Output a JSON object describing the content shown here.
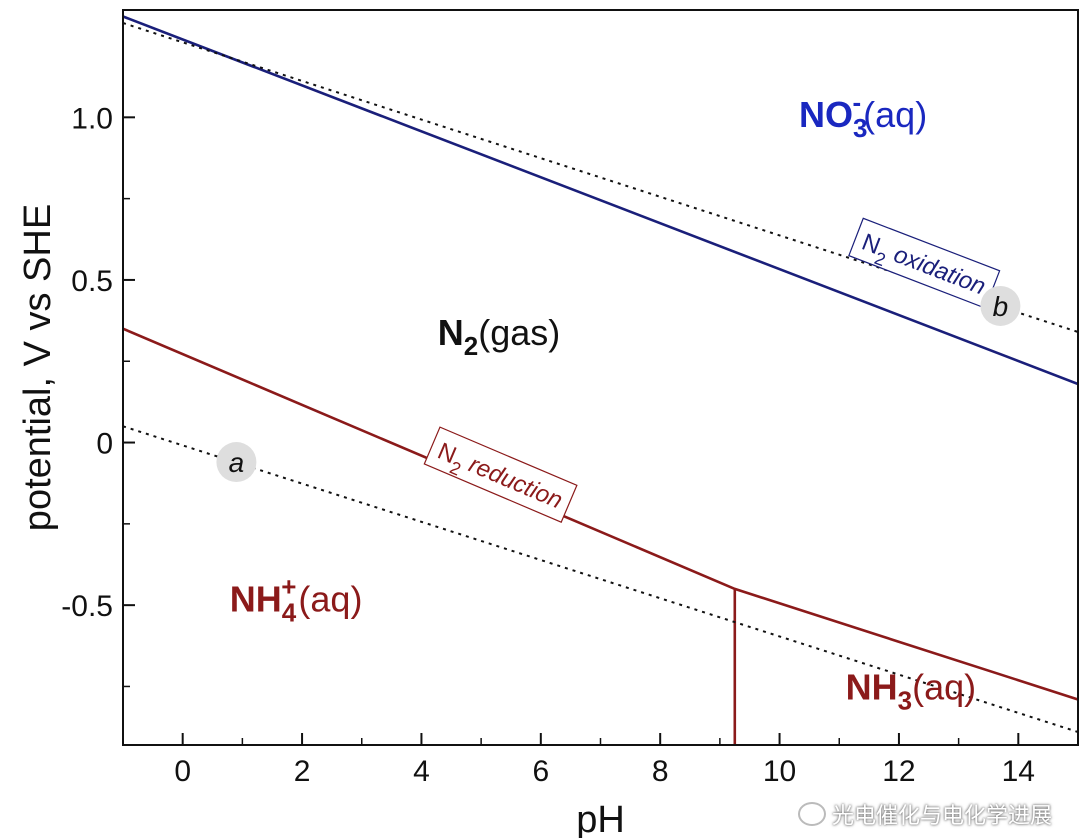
{
  "chart_data": {
    "type": "line",
    "xlabel": "pH",
    "ylabel": "potential, V vs SHE",
    "xlim": [
      -1,
      15
    ],
    "ylim": [
      -0.93,
      1.33
    ],
    "x_ticks": [
      0,
      2,
      4,
      6,
      8,
      10,
      12,
      14
    ],
    "x_tick_labels": [
      "0",
      "2",
      "4",
      "6",
      "8",
      "10",
      "12",
      "14"
    ],
    "y_ticks": [
      1.0,
      0.5,
      0,
      -0.5
    ],
    "y_tick_labels": [
      "1.0",
      "0.5",
      "0",
      "-0.5"
    ],
    "grid": false,
    "series": [
      {
        "key": "n2-oxidation",
        "color": "#1a1f7a",
        "style": "solid",
        "x": [
          -1,
          15
        ],
        "y": [
          1.31,
          0.18
        ]
      },
      {
        "key": "n2-reduction",
        "color": "#8b1a1a",
        "style": "solid",
        "x": [
          -1,
          9.25,
          15
        ],
        "y": [
          0.35,
          -0.45,
          -0.79
        ]
      },
      {
        "key": "nh4-nh3-boundary",
        "color": "#8b1a1a",
        "style": "solid",
        "x": [
          9.25,
          9.25
        ],
        "y": [
          -0.45,
          -0.93
        ]
      },
      {
        "key": "line-a",
        "color": "#111111",
        "style": "dotted",
        "x": [
          -1,
          15
        ],
        "y": [
          0.05,
          -0.89
        ]
      },
      {
        "key": "line-b",
        "color": "#111111",
        "style": "dotted",
        "x": [
          -1,
          15
        ],
        "y": [
          1.29,
          0.34
        ]
      }
    ],
    "annotations": {
      "n2_oxidation": {
        "prefix": "N",
        "sub": "2",
        "text": " oxidation",
        "x": 12.4,
        "y": 0.54,
        "color": "#1a1f7a"
      },
      "n2_reduction": {
        "prefix": "N",
        "sub": "2",
        "text": " reduction",
        "x": 5.3,
        "y": -0.11,
        "color": "#8b1a1a"
      },
      "marker_a": {
        "text": "a",
        "x": 0.9,
        "y": -0.06
      },
      "marker_b": {
        "text": "b",
        "x": 13.7,
        "y": 0.42
      }
    },
    "regions": {
      "no3": {
        "main": "NO",
        "sub": "3",
        "sup": "-",
        "suffix": "(aq)",
        "x": 11.4,
        "y": 0.97,
        "color": "#1a28c0"
      },
      "n2": {
        "main": "N",
        "sub": "2",
        "suffix": "(gas)",
        "x": 5.3,
        "y": 0.3,
        "color": "#111111"
      },
      "nh4": {
        "main": "NH",
        "sub": "4",
        "sup": "+",
        "suffix": "(aq)",
        "x": 1.9,
        "y": -0.52,
        "color": "#8b1a1a"
      },
      "nh3": {
        "main": "NH",
        "sub": "3",
        "suffix": "(aq)",
        "x": 12.2,
        "y": -0.79,
        "color": "#8b1a1a"
      }
    }
  },
  "watermark": {
    "text": "光电催化与电化学进展"
  }
}
